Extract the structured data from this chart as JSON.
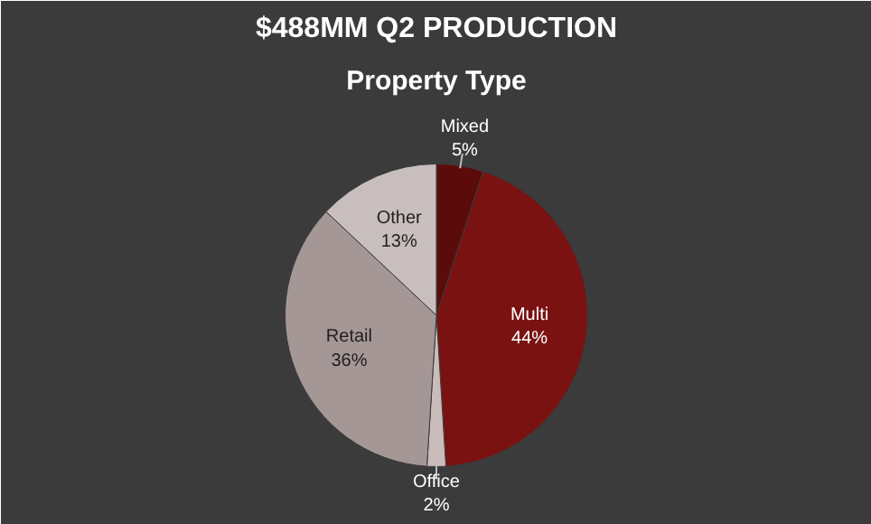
{
  "chart_data": {
    "type": "pie",
    "title": "$488MM Q2 PRODUCTION",
    "subtitle": "Property Type",
    "categories": [
      "Mixed",
      "Multi",
      "Office",
      "Retail",
      "Other"
    ],
    "values": [
      5,
      44,
      2,
      36,
      13
    ],
    "value_labels": [
      "5%",
      "44%",
      "2%",
      "36%",
      "13%"
    ],
    "colors": [
      "#5c0b0b",
      "#7a1212",
      "#cbbcbc",
      "#a69797",
      "#c9bebe"
    ]
  }
}
